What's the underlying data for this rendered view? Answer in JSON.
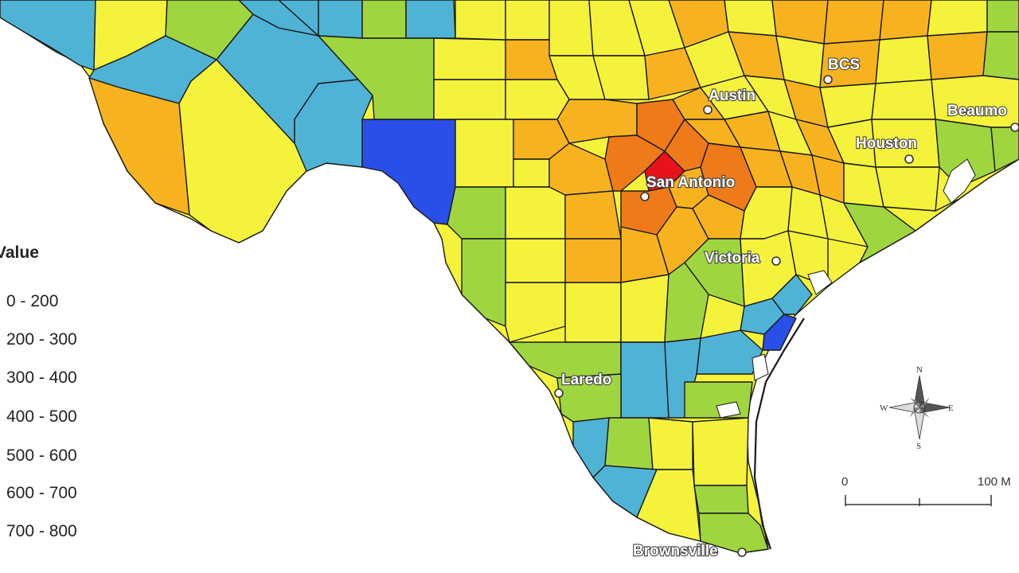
{
  "legend": {
    "title": "Value",
    "items": [
      {
        "label": "0 - 200",
        "color": "#2a4ee8"
      },
      {
        "label": "200 - 300",
        "color": "#4fb3d6"
      },
      {
        "label": "300 - 400",
        "color": "#9fd63f"
      },
      {
        "label": "400 - 500",
        "color": "#f5f23b"
      },
      {
        "label": "500 - 600",
        "color": "#f7b31f"
      },
      {
        "label": "600 - 700",
        "color": "#ef7a1a"
      },
      {
        "label": "700 - 800",
        "color": "#e8121a"
      }
    ]
  },
  "cities": [
    {
      "name": "Austin"
    },
    {
      "name": "BCS"
    },
    {
      "name": "Houston"
    },
    {
      "name": "Beaumo"
    },
    {
      "name": "San Antonio"
    },
    {
      "name": "Victoria"
    },
    {
      "name": "Laredo"
    },
    {
      "name": "Brownsville"
    }
  ],
  "compass": {
    "n": "N",
    "s": "S",
    "e": "E",
    "w": "W"
  },
  "scale_bar": {
    "start": "0",
    "end": "100 M"
  }
}
